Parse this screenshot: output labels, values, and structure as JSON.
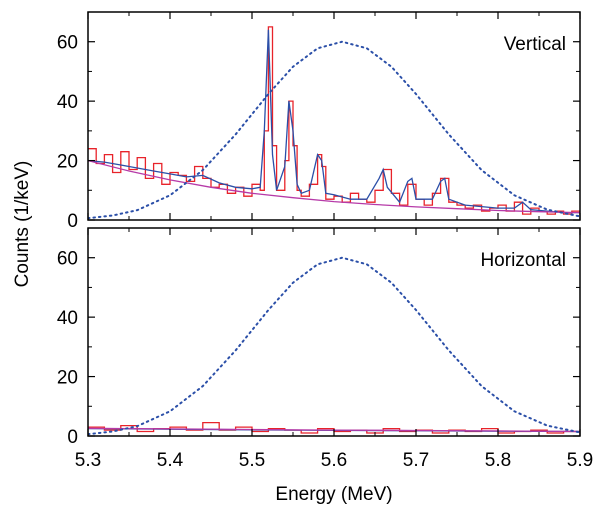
{
  "chart_data": [
    {
      "type": "line",
      "panel_label": "Vertical",
      "xlim": [
        5.3,
        5.9
      ],
      "ylim": [
        0,
        70
      ],
      "x_ticks": [
        "5.3",
        "5.4",
        "5.5",
        "5.6",
        "5.7",
        "5.8",
        "5.9"
      ],
      "y_ticks": [
        "0",
        "20",
        "40",
        "60"
      ],
      "colors": {
        "histogram": "#e8232a",
        "fit": "#2b4fa8",
        "background": "#b63aa8",
        "expected": "#2b4fa8"
      },
      "grid": false,
      "series": [
        {
          "style": "step",
          "x": [
            5.3,
            5.31,
            5.32,
            5.33,
            5.34,
            5.35,
            5.36,
            5.37,
            5.38,
            5.39,
            5.4,
            5.41,
            5.42,
            5.43,
            5.44,
            5.45,
            5.46,
            5.47,
            5.48,
            5.49,
            5.5,
            5.51,
            5.515,
            5.52,
            5.525,
            5.53,
            5.54,
            5.545,
            5.55,
            5.555,
            5.56,
            5.57,
            5.58,
            5.585,
            5.59,
            5.6,
            5.61,
            5.62,
            5.63,
            5.64,
            5.65,
            5.66,
            5.67,
            5.68,
            5.69,
            5.7,
            5.71,
            5.72,
            5.73,
            5.74,
            5.75,
            5.76,
            5.77,
            5.78,
            5.79,
            5.8,
            5.81,
            5.82,
            5.83,
            5.84,
            5.85,
            5.86,
            5.87,
            5.88,
            5.89,
            5.9
          ],
          "y": [
            24,
            19,
            22,
            16,
            23,
            17,
            21,
            14,
            19,
            12,
            16,
            15,
            13,
            18,
            14,
            11,
            12,
            9,
            11,
            8,
            12,
            10,
            30,
            65,
            25,
            10,
            20,
            40,
            25,
            10,
            8,
            12,
            22,
            18,
            7,
            8,
            6,
            9,
            7,
            6,
            10,
            17,
            9,
            5,
            12,
            7,
            5,
            9,
            14,
            6,
            5,
            4,
            5,
            3,
            4,
            5,
            3,
            6,
            2,
            4,
            3,
            2,
            3,
            2,
            3,
            2
          ]
        },
        {
          "style": "line",
          "x": [
            5.3,
            5.32,
            5.34,
            5.36,
            5.38,
            5.4,
            5.42,
            5.44,
            5.46,
            5.48,
            5.5,
            5.51,
            5.515,
            5.52,
            5.525,
            5.53,
            5.54,
            5.545,
            5.55,
            5.555,
            5.56,
            5.57,
            5.58,
            5.585,
            5.59,
            5.6,
            5.62,
            5.64,
            5.655,
            5.66,
            5.665,
            5.68,
            5.69,
            5.695,
            5.7,
            5.72,
            5.73,
            5.735,
            5.74,
            5.76,
            5.78,
            5.8,
            5.82,
            5.83,
            5.84,
            5.86,
            5.88,
            5.9
          ],
          "y": [
            20,
            19.5,
            18.5,
            17.5,
            16.5,
            15.5,
            14.5,
            15,
            12.5,
            11,
            10.5,
            11,
            30,
            64,
            22,
            10,
            18,
            40,
            30,
            12,
            9,
            10,
            22,
            20,
            9,
            8.5,
            7,
            7,
            14,
            17,
            11,
            6,
            13,
            14,
            7,
            7,
            13,
            14,
            7,
            5,
            4.5,
            4,
            4,
            6,
            3.5,
            3,
            2.5,
            2.5
          ]
        },
        {
          "style": "line",
          "x": [
            5.3,
            5.35,
            5.4,
            5.45,
            5.5,
            5.55,
            5.6,
            5.65,
            5.7,
            5.75,
            5.8,
            5.85,
            5.9
          ],
          "y": [
            20,
            16.5,
            13.5,
            11,
            9,
            7.5,
            6.2,
            5.2,
            4.4,
            3.8,
            3.2,
            2.8,
            2.5
          ]
        },
        {
          "style": "dotted",
          "x": [
            5.3,
            5.33,
            5.36,
            5.4,
            5.44,
            5.48,
            5.52,
            5.55,
            5.58,
            5.61,
            5.64,
            5.67,
            5.7,
            5.74,
            5.78,
            5.82,
            5.86,
            5.9
          ],
          "y": [
            0.6,
            1.5,
            3.3,
            8.3,
            16.8,
            28.8,
            42.4,
            51.6,
            57.8,
            60,
            57.8,
            51.6,
            42.4,
            28.8,
            16.8,
            8.3,
            3.5,
            1.2
          ]
        }
      ]
    },
    {
      "type": "line",
      "panel_label": "Horizontal",
      "xlabel": "Energy (MeV)",
      "ylabel": "Counts (1/keV)",
      "xlim": [
        5.3,
        5.9
      ],
      "ylim": [
        0,
        70
      ],
      "x_ticks": [
        "5.3",
        "5.4",
        "5.5",
        "5.6",
        "5.7",
        "5.8",
        "5.9"
      ],
      "y_ticks": [
        "0",
        "20",
        "40",
        "60"
      ],
      "colors": {
        "histogram": "#e8232a",
        "fit": "#2b4fa8",
        "background": "#b63aa8",
        "expected": "#2b4fa8"
      },
      "grid": false,
      "series": [
        {
          "style": "step",
          "x": [
            5.3,
            5.32,
            5.34,
            5.36,
            5.38,
            5.4,
            5.42,
            5.44,
            5.46,
            5.48,
            5.5,
            5.52,
            5.54,
            5.56,
            5.58,
            5.6,
            5.62,
            5.64,
            5.66,
            5.68,
            5.7,
            5.72,
            5.74,
            5.76,
            5.78,
            5.8,
            5.82,
            5.84,
            5.86,
            5.88,
            5.9
          ],
          "y": [
            3,
            2,
            3.5,
            1.5,
            2.5,
            3,
            2,
            4.5,
            2,
            3,
            1.5,
            2.5,
            2,
            1,
            2.5,
            1.5,
            2,
            1,
            2.5,
            1.5,
            2,
            1,
            2,
            1.5,
            2.5,
            1,
            1.5,
            2,
            1,
            1.5,
            1
          ]
        },
        {
          "style": "line",
          "x": [
            5.3,
            5.4,
            5.5,
            5.6,
            5.7,
            5.8,
            5.9
          ],
          "y": [
            2.5,
            2.3,
            2.1,
            1.9,
            1.8,
            1.6,
            1.5
          ]
        },
        {
          "style": "line",
          "x": [
            5.3,
            5.4,
            5.5,
            5.6,
            5.7,
            5.8,
            5.9
          ],
          "y": [
            2.6,
            2.4,
            2.2,
            2.0,
            1.85,
            1.7,
            1.5
          ]
        },
        {
          "style": "dotted",
          "x": [
            5.3,
            5.33,
            5.36,
            5.4,
            5.44,
            5.48,
            5.52,
            5.55,
            5.58,
            5.61,
            5.64,
            5.67,
            5.7,
            5.74,
            5.78,
            5.82,
            5.86,
            5.9
          ],
          "y": [
            0.6,
            1.5,
            3.3,
            8.3,
            16.8,
            28.8,
            42.4,
            51.6,
            57.8,
            60,
            57.8,
            51.6,
            42.4,
            28.8,
            16.8,
            8.3,
            3.5,
            1.2
          ]
        }
      ]
    }
  ]
}
